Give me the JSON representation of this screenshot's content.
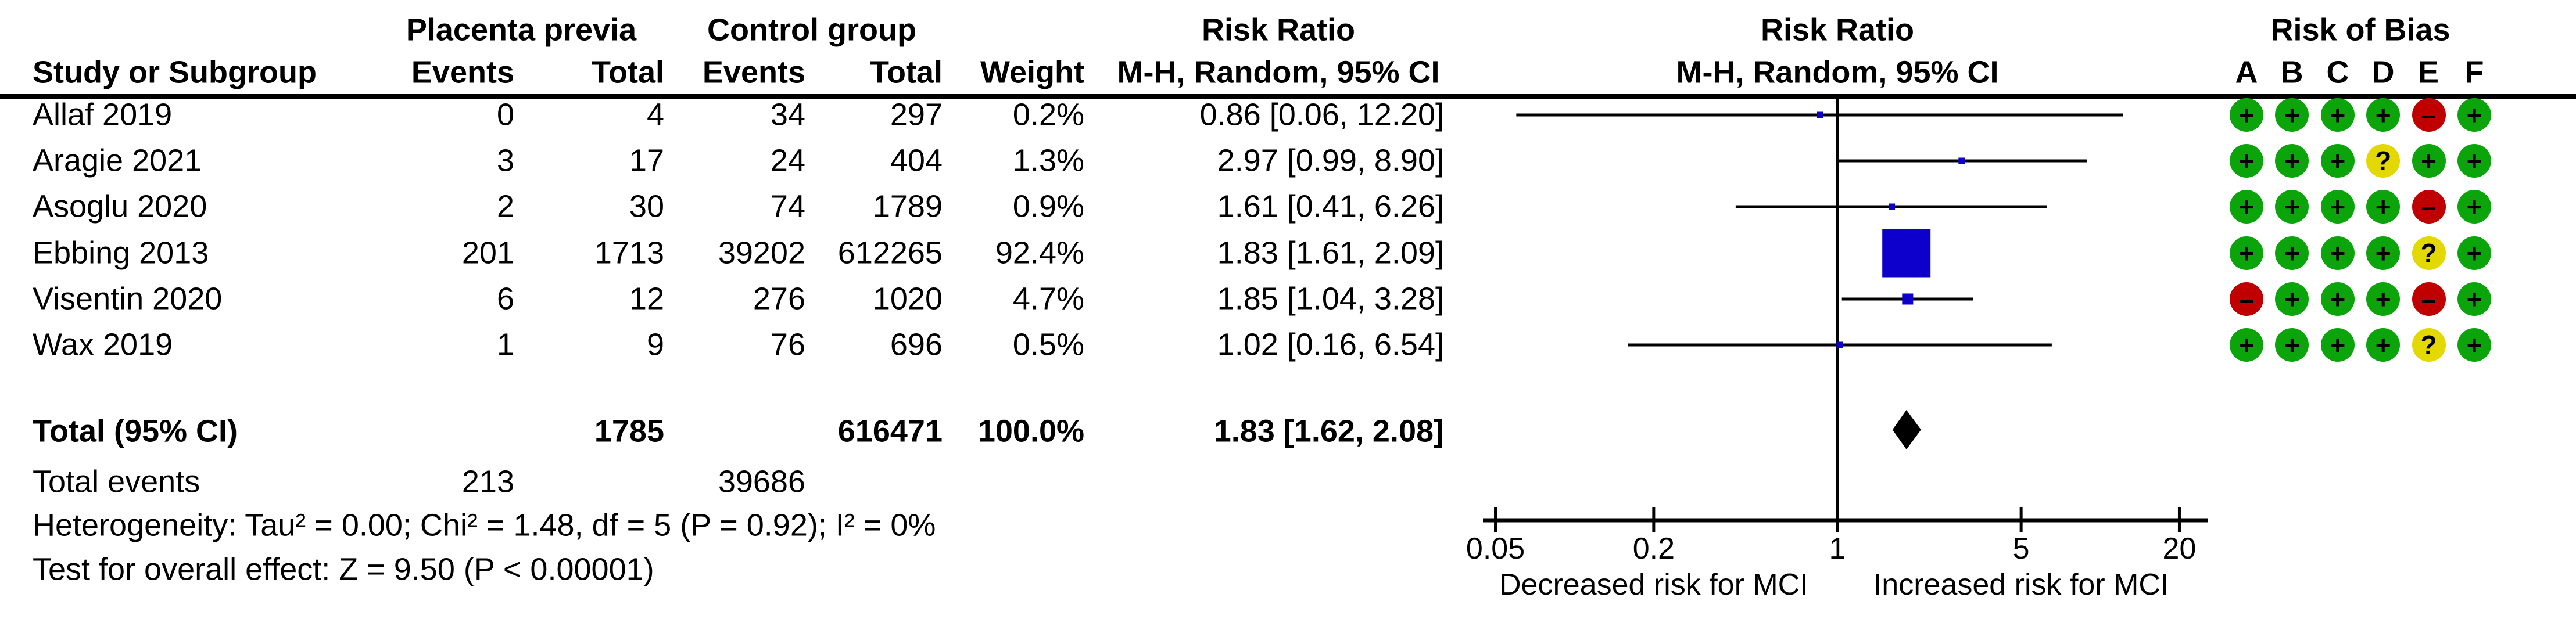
{
  "table": {
    "group1_header": "Placenta previa",
    "group2_header": "Control group",
    "col_study": "Study or Subgroup",
    "col_events": "Events",
    "col_total": "Total",
    "col_weight": "Weight",
    "rr_col_header_line1": "Risk Ratio",
    "rr_col_header_line2": "M-H, Random, 95% CI",
    "total_row": {
      "label": "Total (95% CI)",
      "total_exp": "1785",
      "total_ctl": "616471",
      "weight": "100.0%",
      "rr_ci_text": "1.83 [1.62, 2.08]"
    },
    "total_events_row": {
      "label": "Total events",
      "events_exp": "213",
      "events_ctl": "39686"
    },
    "heterogeneity": "Heterogeneity: Tau² = 0.00; Chi² = 1.48, df = 5 (P = 0.92); I² = 0%",
    "overall_effect": "Test for overall effect: Z = 9.50 (P < 0.00001)"
  },
  "plot_header": {
    "line1": "Risk Ratio",
    "line2": "M-H, Random, 95% CI"
  },
  "risk_of_bias": {
    "header": "Risk of Bias",
    "columns": [
      "A",
      "B",
      "C",
      "D",
      "E",
      "F"
    ]
  },
  "chart_data": {
    "type": "forest",
    "x_scale": "log10",
    "axis": {
      "ticks": [
        0.05,
        0.2,
        1,
        5,
        20
      ],
      "tick_labels": [
        "0.05",
        "0.2",
        "1",
        "5",
        "20"
      ],
      "range": [
        0.05,
        20
      ],
      "left_label": "Decreased risk for MCI",
      "right_label": "Increased risk for MCI"
    },
    "studies": [
      {
        "label": "Allaf 2019",
        "events_exp": "0",
        "total_exp": "4",
        "events_ctl": "34",
        "total_ctl": "297",
        "weight": "0.2%",
        "weight_pct": 0.2,
        "rr": 0.86,
        "ci_low": 0.06,
        "ci_high": 12.2,
        "rr_ci_text": "0.86 [0.06, 12.20]",
        "risk_of_bias": [
          "+",
          "+",
          "+",
          "+",
          "-",
          "+"
        ]
      },
      {
        "label": "Aragie 2021",
        "events_exp": "3",
        "total_exp": "17",
        "events_ctl": "24",
        "total_ctl": "404",
        "weight": "1.3%",
        "weight_pct": 1.3,
        "rr": 2.97,
        "ci_low": 0.99,
        "ci_high": 8.9,
        "rr_ci_text": "2.97 [0.99, 8.90]",
        "risk_of_bias": [
          "+",
          "+",
          "+",
          "?",
          "+",
          "+"
        ]
      },
      {
        "label": "Asoglu 2020",
        "events_exp": "2",
        "total_exp": "30",
        "events_ctl": "74",
        "total_ctl": "1789",
        "weight": "0.9%",
        "weight_pct": 0.9,
        "rr": 1.61,
        "ci_low": 0.41,
        "ci_high": 6.26,
        "rr_ci_text": "1.61 [0.41, 6.26]",
        "risk_of_bias": [
          "+",
          "+",
          "+",
          "+",
          "-",
          "+"
        ]
      },
      {
        "label": "Ebbing 2013",
        "events_exp": "201",
        "total_exp": "1713",
        "events_ctl": "39202",
        "total_ctl": "612265",
        "weight": "92.4%",
        "weight_pct": 92.4,
        "rr": 1.83,
        "ci_low": 1.61,
        "ci_high": 2.09,
        "rr_ci_text": "1.83 [1.61, 2.09]",
        "risk_of_bias": [
          "+",
          "+",
          "+",
          "+",
          "?",
          "+"
        ]
      },
      {
        "label": "Visentin 2020",
        "events_exp": "6",
        "total_exp": "12",
        "events_ctl": "276",
        "total_ctl": "1020",
        "weight": "4.7%",
        "weight_pct": 4.7,
        "rr": 1.85,
        "ci_low": 1.04,
        "ci_high": 3.28,
        "rr_ci_text": "1.85 [1.04, 3.28]",
        "risk_of_bias": [
          "-",
          "+",
          "+",
          "+",
          "-",
          "+"
        ]
      },
      {
        "label": "Wax 2019",
        "events_exp": "1",
        "total_exp": "9",
        "events_ctl": "76",
        "total_ctl": "696",
        "weight": "0.5%",
        "weight_pct": 0.5,
        "rr": 1.02,
        "ci_low": 0.16,
        "ci_high": 6.54,
        "rr_ci_text": "1.02 [0.16, 6.54]",
        "risk_of_bias": [
          "+",
          "+",
          "+",
          "+",
          "?",
          "+"
        ]
      }
    ],
    "total": {
      "rr": 1.83,
      "ci_low": 1.62,
      "ci_high": 2.08
    },
    "colors": {
      "marker_blue": "#0d00cd",
      "rob_green": "#0ba50b",
      "rob_red": "#c00000",
      "rob_yellow": "#e3d900",
      "line_black": "#000000"
    }
  }
}
